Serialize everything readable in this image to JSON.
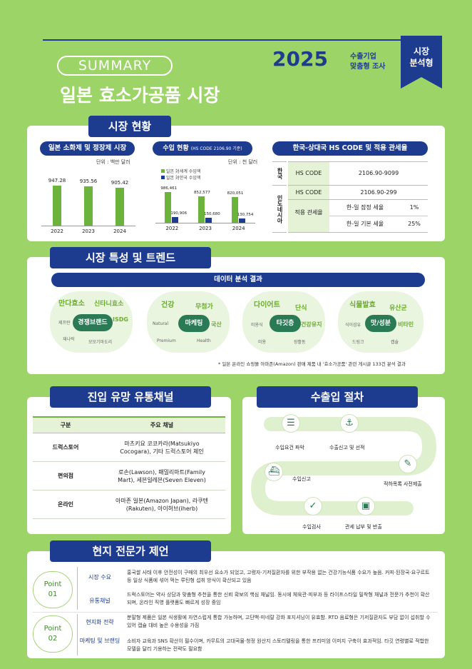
{
  "header": {
    "summary": "SUMMARY",
    "year": "2025",
    "sub1": "수출기업",
    "sub2": "맞춤형 조사",
    "ribbon1": "시장",
    "ribbon2": "분석형",
    "title": "일본 효소가공품 시장"
  },
  "section1": {
    "title": "시장 현황",
    "chart1": {
      "pill": "일본 소화제 및 정장제 시장",
      "unit": "단위 : 백만 달러"
    },
    "chart2": {
      "pill": "수입 현황",
      "pill_sub": "(HS CODE 2106.90 기준)",
      "unit": "단위 : 천 달러",
      "legend1": "일본 対세계 수입액",
      "legend2": "일본 対한국 수입액"
    },
    "hs": {
      "pill": "한국-상대국 HS CODE 및 적용 관세율",
      "korea": "한국",
      "indonesia": "인도네시아",
      "hs_label": "HS CODE",
      "korea_code": "2106.90-9099",
      "indo_code": "2106.90-299",
      "tariff_label": "적용 관세율",
      "rows": [
        {
          "label": "한-일 잠정 세율",
          "value": "1%"
        },
        {
          "label": "한-일 기본 세율",
          "value": "25%"
        }
      ]
    }
  },
  "chart_data": [
    {
      "type": "bar",
      "categories": [
        "2022",
        "2023",
        "2024"
      ],
      "values": [
        947.28,
        935.56,
        905.42
      ],
      "title": "일본 소화제 및 정장제 시장",
      "ylabel": "단위 : 백만 달러",
      "color": "#6bb33a"
    },
    {
      "type": "bar",
      "categories": [
        "2022",
        "2023",
        "2024"
      ],
      "series": [
        {
          "name": "일본 対세계 수입액",
          "values": [
            986461,
            852577,
            820051
          ],
          "color": "#6bb33a"
        },
        {
          "name": "일본 対한국 수입액",
          "values": [
            190906,
            150680,
            130754
          ],
          "color": "#1e3c8f"
        }
      ],
      "value_labels": [
        [
          "986,461",
          "852,577",
          "820,051"
        ],
        [
          "190,906",
          "150,680",
          "130,754"
        ]
      ],
      "title": "수입 현황",
      "ylabel": "단위 : 천 달러"
    }
  ],
  "section2": {
    "title": "시장 특성 및 트렌드",
    "pill": "데이터 분석 결과",
    "clusters": [
      {
        "center": "경쟁브랜드",
        "kws": [
          "만다효소",
          "신타니효소",
          "ISDG"
        ],
        "small": [
          "제프란",
          "재나락",
          "모모기마도리"
        ]
      },
      {
        "center": "마케팅",
        "kws": [
          "건강",
          "무첨가",
          "국산"
        ],
        "small": [
          "Natural",
          "Premium",
          "Health"
        ]
      },
      {
        "center": "타깃층",
        "kws": [
          "다이어트",
          "단식",
          "건강유지"
        ],
        "small": [
          "미용식",
          "미용",
          "장활동"
        ]
      },
      {
        "center": "맛/성분",
        "kws": [
          "식물발효",
          "유산균",
          "비타민"
        ],
        "small": [
          "식이섬유",
          "드링크",
          "캡슐"
        ]
      }
    ],
    "note": "* 일본 온라인 쇼핑몰 아마존(Amazon) 판매 제품 내 '효소가공품' 관련 게시글 133건 분석 결과"
  },
  "section3": {
    "title": "진입 유망 유통채널",
    "headers": [
      "구분",
      "주요 채널"
    ],
    "rows": [
      {
        "type": "드럭스토어",
        "channel": "마츠키요 코코카라(Matsukiyo Cocogara), 기타 드럭스토어 체인"
      },
      {
        "type": "편의점",
        "channel": "로손(Lawson), 패밀리마트(Family Mart), 세븐일레븐(Seven Eleven)"
      },
      {
        "type": "온라인",
        "channel": "아마존 일본(Amazon Japan), 라쿠텐(Rakuten), 아이허브(iherb)"
      }
    ]
  },
  "section4": {
    "title": "수출입 절차",
    "steps": [
      "수입요건 파악",
      "수출신고 및 선적",
      "적하목록 사전제출",
      "수입신고",
      "수입검사",
      "관세 납부 및 반출"
    ]
  },
  "section5": {
    "title": "현지 전문가 제언",
    "points": [
      {
        "label": "Point",
        "num": "01",
        "items": [
          {
            "head": "시장 수요",
            "text": "홍국쌀 사태 이후 안전성이 구매의 최우선 요소가 되었고, 고령자·기저질환자를 위한 부작용 없는 건강기능식품 수요가 높음. 커피·된장국·요구르트 등 일상 식품에 섞어 먹는 루틴형 섭취 방식이 확산되고 있음"
          },
          {
            "head": "유통채널",
            "text": "드럭스토어는 약사 상담과 맞춤형 추천을 통한 신뢰 확보의 핵심 채널임. 동시에 체육관·피부과 등 라이프스타일 밀착형 채널과 전문가 추천이 확산되며, 온라인 직영 플랫폼도 빠르게 성장 중임"
          }
        ]
      },
      {
        "label": "Point",
        "num": "02",
        "items": [
          {
            "head": "현지화 전략",
            "text": "분말형 제품은 일본 식생활에 자연스럽게 통합 가능하며, 고단백·미네랄 강화 포지셔닝이 유효함. RTD 음료형은 기저질환자도 부담 없이 섭취할 수 있어 캡슐 대비 높은 수용성을 가짐"
          },
          {
            "head": "마케팅 및 브랜딩",
            "text": "소비자 교육과 SNS 확산이 필수이며, 카무트의 고대곡물·청정 원산지 스토리텔링을 통한 프리미엄 이미지 구축이 효과적임. 타깃 연령별로 적합한 모델을 달리 기용하는 전략도 필요함"
          }
        ]
      }
    ]
  }
}
